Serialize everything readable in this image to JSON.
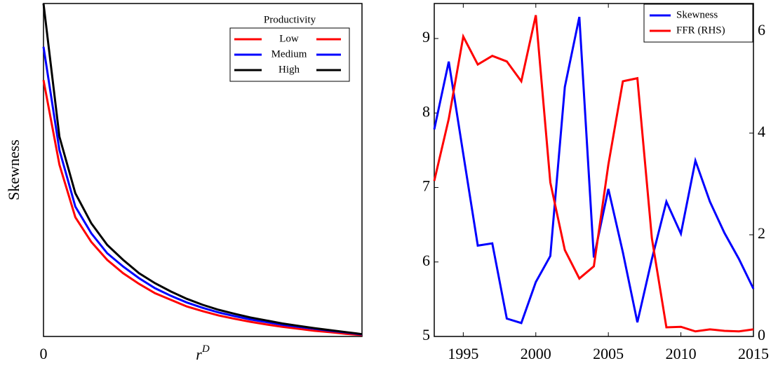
{
  "chart_data": [
    {
      "type": "line",
      "ylabel": "Skewness",
      "xlabel": {
        "base": "r",
        "sup": "D"
      },
      "legend_title": "Productivity",
      "legend": "upper right",
      "x": [
        0,
        1,
        2,
        3,
        4,
        5,
        6,
        7,
        8,
        9,
        10,
        11,
        12,
        13,
        14,
        15,
        16,
        17,
        18,
        19,
        20
      ],
      "xlim": [
        0,
        20
      ],
      "xticks": [
        0
      ],
      "ylim": [
        0,
        100
      ],
      "yticks": [],
      "series": [
        {
          "name": "Low",
          "color": "#ff0000",
          "values": [
            77,
            51.6,
            35.8,
            28.4,
            23,
            19,
            15.8,
            13,
            11,
            9,
            7.6,
            6.3,
            5.3,
            4.4,
            3.6,
            2.9,
            2.3,
            1.7,
            1.3,
            0.8,
            0.4
          ]
        },
        {
          "name": "Medium",
          "color": "#0000ff",
          "values": [
            87,
            56,
            39,
            31,
            25,
            21,
            17.5,
            14.5,
            12.2,
            10.2,
            8.6,
            7.2,
            6.1,
            5.1,
            4.3,
            3.5,
            2.9,
            2.3,
            1.7,
            1.2,
            0.6
          ]
        },
        {
          "name": "High",
          "color": "#000000",
          "values": [
            100,
            60,
            43,
            34,
            27.5,
            23,
            19,
            16,
            13.5,
            11.3,
            9.5,
            8,
            6.8,
            5.7,
            4.8,
            3.9,
            3.2,
            2.5,
            1.9,
            1.3,
            0.7
          ]
        }
      ]
    },
    {
      "type": "line",
      "legend": "upper right",
      "x": [
        1993,
        1994,
        1995,
        1996,
        1997,
        1998,
        1999,
        2000,
        2001,
        2002,
        2003,
        2004,
        2005,
        2006,
        2007,
        2008,
        2009,
        2010,
        2011,
        2012,
        2013,
        2014,
        2015
      ],
      "xlim": [
        1993,
        2015
      ],
      "xticks": [
        1995,
        2000,
        2005,
        2010,
        2015
      ],
      "ylim": [
        5,
        9.47
      ],
      "yticks": [
        5,
        6,
        7,
        8,
        9
      ],
      "y2lim": [
        0,
        6.55
      ],
      "y2ticks": [
        0,
        2,
        4,
        6
      ],
      "series": [
        {
          "name": "Skewness",
          "color": "#0000ff",
          "values": [
            7.78,
            8.69,
            7.45,
            6.22,
            6.25,
            5.24,
            5.18,
            5.73,
            6.08,
            8.35,
            9.29,
            6.06,
            6.98,
            6.13,
            5.19,
            6.04,
            6.81,
            6.38,
            7.36,
            6.81,
            6.39,
            6.04,
            5.64
          ]
        },
        {
          "name": "FFR (RHS)",
          "color": "#ff0000",
          "axis": "y2",
          "values": [
            3.06,
            4.28,
            5.9,
            5.35,
            5.52,
            5.41,
            5.02,
            6.32,
            3.03,
            1.7,
            1.14,
            1.38,
            3.38,
            5.02,
            5.08,
            1.93,
            0.18,
            0.19,
            0.1,
            0.14,
            0.11,
            0.1,
            0.14
          ]
        }
      ]
    }
  ]
}
